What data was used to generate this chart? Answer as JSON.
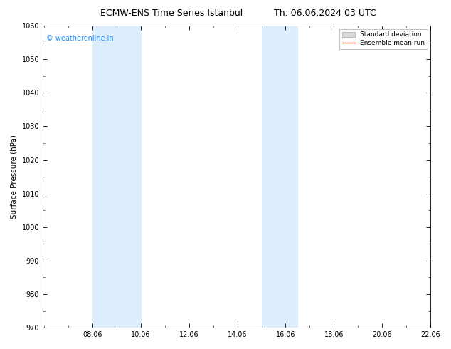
{
  "title_left": "ECMW-ENS Time Series Istanbul",
  "title_right": "Th. 06.06.2024 03 UTC",
  "ylabel": "Surface Pressure (hPa)",
  "ylim": [
    970,
    1060
  ],
  "yticks": [
    970,
    980,
    990,
    1000,
    1010,
    1020,
    1030,
    1040,
    1050,
    1060
  ],
  "xlim_start": 6.0,
  "xlim_end": 22.06,
  "xtick_labels": [
    "08.06",
    "10.06",
    "12.06",
    "14.06",
    "16.06",
    "18.06",
    "20.06",
    "22.06"
  ],
  "xtick_positions": [
    8.06,
    10.06,
    12.06,
    14.06,
    16.06,
    18.06,
    20.06,
    22.06
  ],
  "shaded_bands": [
    {
      "x_start": 8.06,
      "x_end": 10.06
    },
    {
      "x_start": 15.06,
      "x_end": 16.56
    }
  ],
  "shade_color": "#ddeeff",
  "watermark_text": "© weatheronline.in",
  "watermark_color": "#1e90ff",
  "legend_std_color": "#d8d8d8",
  "legend_std_edge": "#aaaaaa",
  "legend_mean_color": "#ff2222",
  "background_color": "#ffffff",
  "title_fontsize": 9,
  "axis_label_fontsize": 7.5,
  "tick_fontsize": 7,
  "watermark_fontsize": 7,
  "legend_fontsize": 6.5
}
